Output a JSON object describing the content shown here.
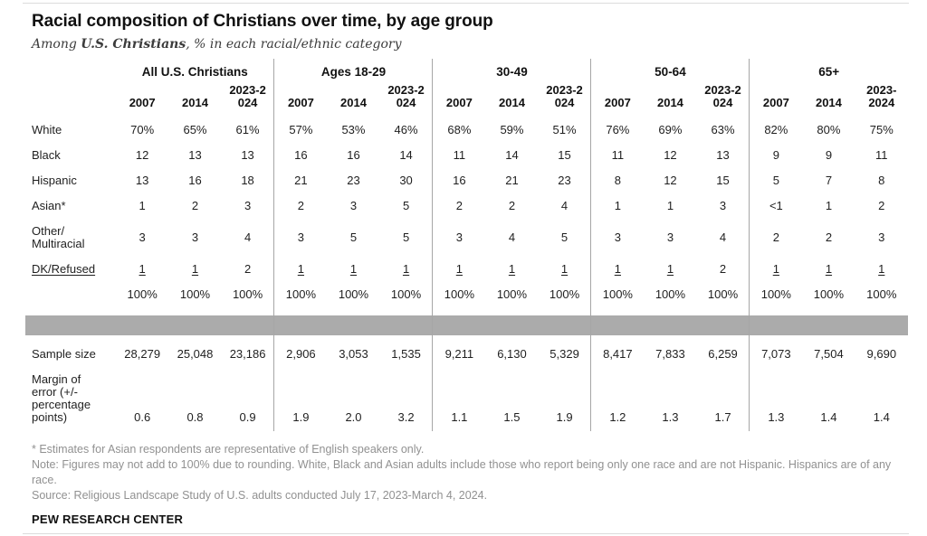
{
  "title": "Racial composition of Christians over time, by age group",
  "subtitle": {
    "prefix": "Among ",
    "bold": "U.S. Christians",
    "suffix": ", % in each racial/ethnic category"
  },
  "chart_data": {
    "type": "table",
    "column_groups": [
      "All U.S. Christians",
      "Ages 18-29",
      "30-49",
      "50-64",
      "65+"
    ],
    "years": [
      "2007",
      "2014",
      "2023-2024"
    ],
    "year_headers_display": [
      "2007",
      "2014",
      "2023-2\n024",
      "2007",
      "2014",
      "2023-2\n024",
      "2007",
      "2014",
      "2023-2\n024",
      "2007",
      "2014",
      "2023-2\n024",
      "2007",
      "2014",
      "2023-\n2024"
    ],
    "rows": [
      {
        "label": "White",
        "values": [
          "70%",
          "65%",
          "61%",
          "57%",
          "53%",
          "46%",
          "68%",
          "59%",
          "51%",
          "76%",
          "69%",
          "63%",
          "82%",
          "80%",
          "75%"
        ]
      },
      {
        "label": "Black",
        "values": [
          "12",
          "13",
          "13",
          "16",
          "16",
          "14",
          "11",
          "14",
          "15",
          "11",
          "12",
          "13",
          "9",
          "9",
          "11"
        ]
      },
      {
        "label": "Hispanic",
        "values": [
          "13",
          "16",
          "18",
          "21",
          "23",
          "30",
          "16",
          "21",
          "23",
          "8",
          "12",
          "15",
          "5",
          "7",
          "8"
        ]
      },
      {
        "label": "Asian*",
        "values": [
          "1",
          "2",
          "3",
          "2",
          "3",
          "5",
          "2",
          "2",
          "4",
          "1",
          "1",
          "3",
          "<1",
          "1",
          "2"
        ]
      },
      {
        "label": "Other/\nMultiracial",
        "values": [
          "3",
          "3",
          "4",
          "3",
          "5",
          "5",
          "3",
          "4",
          "5",
          "3",
          "3",
          "4",
          "2",
          "2",
          "3"
        ]
      },
      {
        "label": "DK/Refused",
        "label_underline": true,
        "values": [
          "1",
          "1",
          "2",
          "1",
          "1",
          "1",
          "1",
          "1",
          "1",
          "1",
          "1",
          "2",
          "1",
          "1",
          "1"
        ],
        "underline_mask": [
          true,
          true,
          false,
          true,
          true,
          true,
          true,
          true,
          true,
          true,
          true,
          false,
          true,
          true,
          true
        ]
      },
      {
        "kind": "total",
        "label": "",
        "values": [
          "100%",
          "100%",
          "100%",
          "100%",
          "100%",
          "100%",
          "100%",
          "100%",
          "100%",
          "100%",
          "100%",
          "100%",
          "100%",
          "100%",
          "100%"
        ]
      },
      {
        "kind": "band"
      },
      {
        "kind": "sample",
        "label": "Sample size",
        "values": [
          "28,279",
          "25,048",
          "23,186",
          "2,906",
          "3,053",
          "1,535",
          "9,211",
          "6,130",
          "5,329",
          "8,417",
          "7,833",
          "6,259",
          "7,073",
          "7,504",
          "9,690"
        ]
      },
      {
        "kind": "margin",
        "label": "Margin of\nerror (+/-\npercentage\npoints)",
        "values": [
          "0.6",
          "0.8",
          "0.9",
          "1.9",
          "2.0",
          "3.2",
          "1.1",
          "1.5",
          "1.9",
          "1.2",
          "1.3",
          "1.7",
          "1.3",
          "1.4",
          "1.4"
        ]
      }
    ]
  },
  "footnotes": [
    "* Estimates for Asian respondents are representative of English speakers only.",
    "Note: Figures may not add to 100% due to rounding. White, Black and Asian adults include those who report being only one race and are not Hispanic. Hispanics are of any race.",
    "Source: Religious Landscape Study of U.S. adults conducted July 17, 2023-March 4, 2024."
  ],
  "branding": "PEW RESEARCH CENTER",
  "colors": {
    "band": "#ababab",
    "divider": "#a6a6a6",
    "rule": "#dcdcdc",
    "foot": "#919191",
    "text": "#1f1f1f"
  }
}
